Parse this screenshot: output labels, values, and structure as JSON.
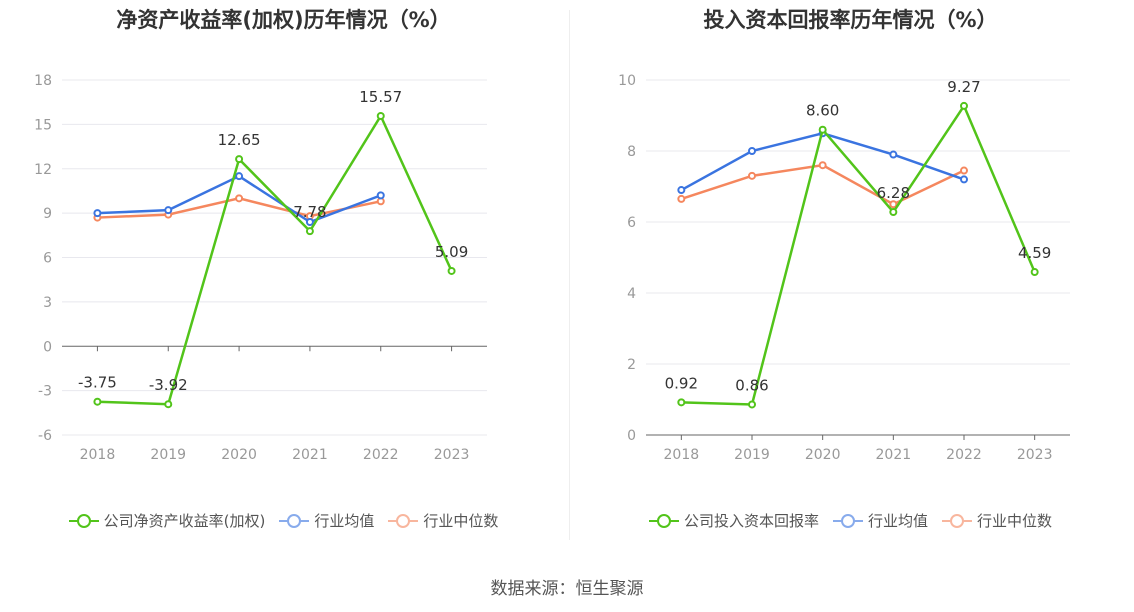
{
  "colors": {
    "company": "#52c41a",
    "avg": "#3a74e0",
    "median": "#f5875e",
    "grid": "#e8e8ee",
    "axis": "#666666",
    "tick": "#999999"
  },
  "source_label": "数据来源：恒生聚源",
  "chart_data": [
    {
      "type": "line",
      "title": "净资产收益率(加权)历年情况（%）",
      "categories": [
        "2018",
        "2019",
        "2020",
        "2021",
        "2022",
        "2023"
      ],
      "ylim": [
        -6,
        18
      ],
      "yticks": [
        -6,
        -3,
        0,
        3,
        6,
        9,
        12,
        15,
        18
      ],
      "grid": true,
      "legend_position": "bottom",
      "series": [
        {
          "name": "公司净资产收益率(加权)",
          "color": "#52c41a",
          "labels": true,
          "values": [
            -3.75,
            -3.92,
            12.65,
            7.78,
            15.57,
            5.09
          ]
        },
        {
          "name": "行业均值",
          "color": "#3a74e0",
          "labels": false,
          "values": [
            9.0,
            9.2,
            11.5,
            8.4,
            10.2,
            null
          ]
        },
        {
          "name": "行业中位数",
          "color": "#f5875e",
          "labels": false,
          "values": [
            8.7,
            8.9,
            10.0,
            8.8,
            9.8,
            null
          ]
        }
      ]
    },
    {
      "type": "line",
      "title": "投入资本回报率历年情况（%）",
      "categories": [
        "2018",
        "2019",
        "2020",
        "2021",
        "2022",
        "2023"
      ],
      "ylim": [
        0,
        10
      ],
      "yticks": [
        0,
        2,
        4,
        6,
        8,
        10
      ],
      "grid": true,
      "legend_position": "bottom",
      "series": [
        {
          "name": "公司投入资本回报率",
          "color": "#52c41a",
          "labels": true,
          "values": [
            0.92,
            0.86,
            8.6,
            6.28,
            9.27,
            4.59
          ]
        },
        {
          "name": "行业均值",
          "color": "#3a74e0",
          "labels": false,
          "values": [
            6.9,
            8.0,
            8.5,
            7.9,
            7.2,
            null
          ]
        },
        {
          "name": "行业中位数",
          "color": "#f5875e",
          "labels": false,
          "values": [
            6.65,
            7.3,
            7.6,
            6.5,
            7.45,
            null
          ]
        }
      ]
    }
  ]
}
